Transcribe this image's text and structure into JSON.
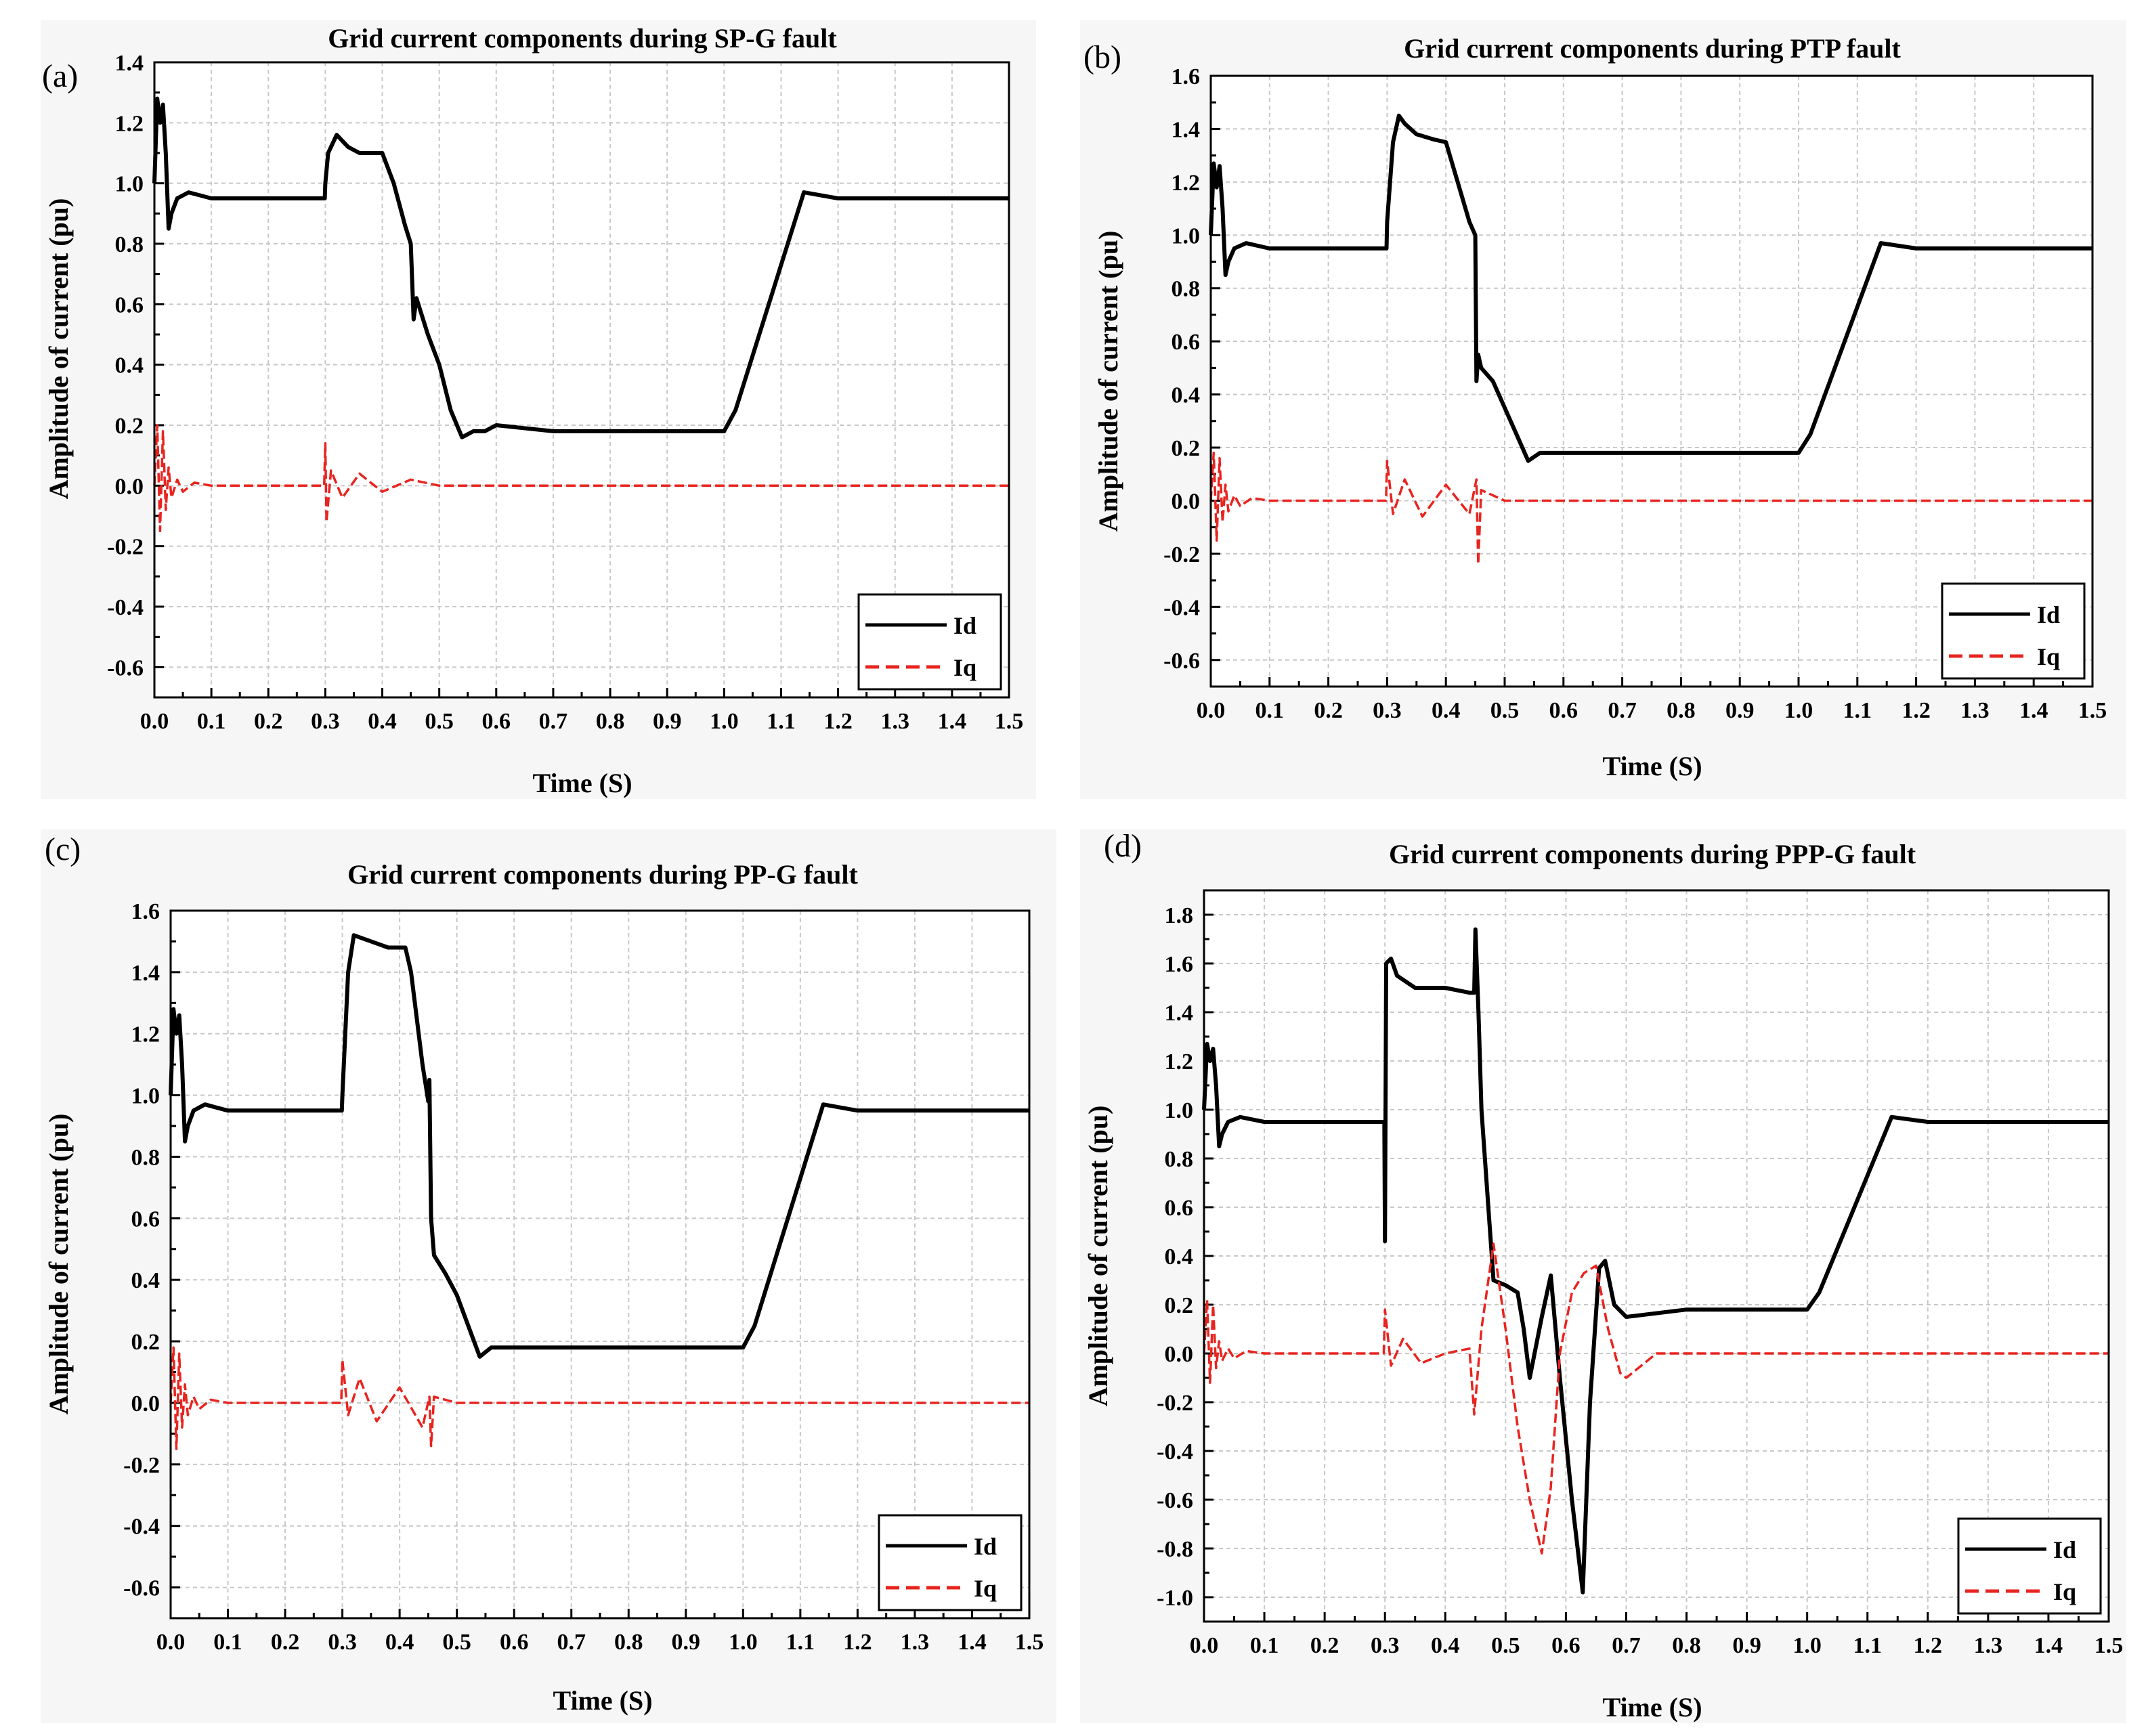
{
  "chart_data": [
    {
      "type": "line",
      "panel_label": "(a)",
      "title": "Grid current components during SP-G fault",
      "xlabel": "Time (S)",
      "ylabel": "Amplitude of current (pu)",
      "xlim": [
        0,
        1.5
      ],
      "ylim": [
        -0.7,
        1.4
      ],
      "x_ticks": [
        "0.0",
        "0.1",
        "0.2",
        "0.3",
        "0.4",
        "0.5",
        "0.6",
        "0.7",
        "0.8",
        "0.9",
        "1.0",
        "1.1",
        "1.2",
        "1.3",
        "1.4",
        "1.5"
      ],
      "y_ticks": [
        "-0.6",
        "-0.4",
        "-0.2",
        "0.0",
        "0.2",
        "0.4",
        "0.6",
        "0.8",
        "1.0",
        "1.2",
        "1.4"
      ],
      "legend_position": "bottom-right",
      "series": [
        {
          "name": "Id",
          "color": "#000000",
          "dash": "solid",
          "x": [
            0,
            0.005,
            0.01,
            0.015,
            0.02,
            0.025,
            0.03,
            0.04,
            0.06,
            0.08,
            0.1,
            0.2,
            0.299,
            0.3,
            0.305,
            0.32,
            0.34,
            0.36,
            0.38,
            0.4,
            0.42,
            0.44,
            0.45,
            0.455,
            0.46,
            0.48,
            0.5,
            0.52,
            0.54,
            0.56,
            0.58,
            0.6,
            0.7,
            0.8,
            0.9,
            1.0,
            1.02,
            1.14,
            1.2,
            1.3,
            1.4,
            1.5
          ],
          "y": [
            1.0,
            1.28,
            1.2,
            1.26,
            1.1,
            0.85,
            0.9,
            0.95,
            0.97,
            0.96,
            0.95,
            0.95,
            0.95,
            1.0,
            1.1,
            1.16,
            1.12,
            1.1,
            1.1,
            1.1,
            1.0,
            0.86,
            0.8,
            0.55,
            0.62,
            0.5,
            0.4,
            0.25,
            0.16,
            0.18,
            0.18,
            0.2,
            0.18,
            0.18,
            0.18,
            0.18,
            0.25,
            0.97,
            0.95,
            0.95,
            0.95,
            0.95
          ]
        },
        {
          "name": "Iq",
          "color": "#e8241f",
          "dash": "dashed",
          "x": [
            0,
            0.005,
            0.01,
            0.015,
            0.02,
            0.025,
            0.03,
            0.04,
            0.05,
            0.07,
            0.1,
            0.2,
            0.298,
            0.3,
            0.302,
            0.31,
            0.33,
            0.36,
            0.4,
            0.45,
            0.5,
            0.6,
            0.8,
            1.0,
            1.2,
            1.5
          ],
          "y": [
            0,
            0.2,
            -0.15,
            0.18,
            -0.08,
            0.06,
            -0.04,
            0.02,
            -0.02,
            0.01,
            0.0,
            0.0,
            0.0,
            0.14,
            -0.12,
            0.05,
            -0.04,
            0.04,
            -0.02,
            0.02,
            0.0,
            0.0,
            0.0,
            0.0,
            0.0,
            0.0
          ]
        }
      ]
    },
    {
      "type": "line",
      "panel_label": "(b)",
      "title": "Grid current components during PTP fault",
      "xlabel": "Time (S)",
      "ylabel": "Amplitude of current (pu)",
      "xlim": [
        0,
        1.5
      ],
      "ylim": [
        -0.7,
        1.6
      ],
      "x_ticks": [
        "0.0",
        "0.1",
        "0.2",
        "0.3",
        "0.4",
        "0.5",
        "0.6",
        "0.7",
        "0.8",
        "0.9",
        "1.0",
        "1.1",
        "1.2",
        "1.3",
        "1.4",
        "1.5"
      ],
      "y_ticks": [
        "-0.6",
        "-0.4",
        "-0.2",
        "0.0",
        "0.2",
        "0.4",
        "0.6",
        "0.8",
        "1.0",
        "1.2",
        "1.4",
        "1.6"
      ],
      "legend_position": "bottom-right",
      "series": [
        {
          "name": "Id",
          "color": "#000000",
          "dash": "solid",
          "x": [
            0,
            0.005,
            0.01,
            0.015,
            0.02,
            0.025,
            0.03,
            0.04,
            0.06,
            0.08,
            0.1,
            0.2,
            0.299,
            0.3,
            0.31,
            0.32,
            0.33,
            0.35,
            0.38,
            0.4,
            0.42,
            0.44,
            0.45,
            0.452,
            0.455,
            0.46,
            0.48,
            0.5,
            0.52,
            0.54,
            0.56,
            0.6,
            0.7,
            0.8,
            0.9,
            1.0,
            1.02,
            1.14,
            1.2,
            1.3,
            1.4,
            1.5
          ],
          "y": [
            1.0,
            1.27,
            1.18,
            1.26,
            1.1,
            0.85,
            0.9,
            0.95,
            0.97,
            0.96,
            0.95,
            0.95,
            0.95,
            1.05,
            1.35,
            1.45,
            1.42,
            1.38,
            1.36,
            1.35,
            1.2,
            1.05,
            1.0,
            0.45,
            0.55,
            0.5,
            0.45,
            0.35,
            0.25,
            0.15,
            0.18,
            0.18,
            0.18,
            0.18,
            0.18,
            0.18,
            0.25,
            0.97,
            0.95,
            0.95,
            0.95,
            0.95
          ]
        },
        {
          "name": "Iq",
          "color": "#e8241f",
          "dash": "dashed",
          "x": [
            0,
            0.005,
            0.01,
            0.015,
            0.02,
            0.025,
            0.03,
            0.04,
            0.05,
            0.07,
            0.1,
            0.2,
            0.298,
            0.3,
            0.31,
            0.33,
            0.36,
            0.4,
            0.44,
            0.452,
            0.455,
            0.46,
            0.5,
            0.6,
            0.8,
            1.0,
            1.2,
            1.5
          ],
          "y": [
            0,
            0.18,
            -0.15,
            0.16,
            -0.08,
            0.06,
            -0.04,
            0.02,
            -0.02,
            0.01,
            0.0,
            0.0,
            0.0,
            0.15,
            -0.05,
            0.08,
            -0.06,
            0.06,
            -0.05,
            0.08,
            -0.24,
            0.04,
            0.0,
            0.0,
            0.0,
            0.0,
            0.0,
            0.0
          ]
        }
      ]
    },
    {
      "type": "line",
      "panel_label": "(c)",
      "title": "Grid current components during PP-G fault",
      "xlabel": "Time (S)",
      "ylabel": "Amplitude of current (pu)",
      "xlim": [
        0,
        1.5
      ],
      "ylim": [
        -0.7,
        1.6
      ],
      "x_ticks": [
        "0.0",
        "0.1",
        "0.2",
        "0.3",
        "0.4",
        "0.5",
        "0.6",
        "0.7",
        "0.8",
        "0.9",
        "1.0",
        "1.1",
        "1.2",
        "1.3",
        "1.4",
        "1.5"
      ],
      "y_ticks": [
        "-0.6",
        "-0.4",
        "-0.2",
        "0.0",
        "0.2",
        "0.4",
        "0.6",
        "0.8",
        "1.0",
        "1.2",
        "1.4",
        "1.6"
      ],
      "legend_position": "bottom-right",
      "series": [
        {
          "name": "Id",
          "color": "#000000",
          "dash": "solid",
          "x": [
            0,
            0.005,
            0.01,
            0.015,
            0.02,
            0.025,
            0.03,
            0.04,
            0.06,
            0.08,
            0.1,
            0.2,
            0.299,
            0.3,
            0.31,
            0.32,
            0.35,
            0.38,
            0.41,
            0.42,
            0.44,
            0.45,
            0.452,
            0.455,
            0.46,
            0.48,
            0.5,
            0.52,
            0.54,
            0.56,
            0.6,
            0.7,
            0.8,
            0.9,
            1.0,
            1.02,
            1.14,
            1.2,
            1.3,
            1.4,
            1.5
          ],
          "y": [
            1.0,
            1.28,
            1.2,
            1.26,
            1.1,
            0.85,
            0.9,
            0.95,
            0.97,
            0.96,
            0.95,
            0.95,
            0.95,
            1.0,
            1.4,
            1.52,
            1.5,
            1.48,
            1.48,
            1.4,
            1.1,
            0.98,
            1.05,
            0.6,
            0.48,
            0.42,
            0.35,
            0.25,
            0.15,
            0.18,
            0.18,
            0.18,
            0.18,
            0.18,
            0.18,
            0.25,
            0.97,
            0.95,
            0.95,
            0.95,
            0.95
          ]
        },
        {
          "name": "Iq",
          "color": "#e8241f",
          "dash": "dashed",
          "x": [
            0,
            0.005,
            0.01,
            0.015,
            0.02,
            0.025,
            0.03,
            0.04,
            0.05,
            0.07,
            0.1,
            0.2,
            0.298,
            0.3,
            0.31,
            0.33,
            0.36,
            0.4,
            0.44,
            0.452,
            0.455,
            0.46,
            0.5,
            0.6,
            0.8,
            1.0,
            1.2,
            1.5
          ],
          "y": [
            0,
            0.18,
            -0.15,
            0.16,
            -0.08,
            0.06,
            -0.04,
            0.02,
            -0.02,
            0.01,
            0.0,
            0.0,
            0.0,
            0.14,
            -0.04,
            0.08,
            -0.06,
            0.05,
            -0.08,
            0.02,
            -0.14,
            0.02,
            0.0,
            0.0,
            0.0,
            0.0,
            0.0,
            0.0
          ]
        }
      ]
    },
    {
      "type": "line",
      "panel_label": "(d)",
      "title": "Grid current components during PPP-G fault",
      "xlabel": "Time (S)",
      "ylabel": "Amplitude of current (pu)",
      "xlim": [
        0,
        1.5
      ],
      "ylim": [
        -1.1,
        1.9
      ],
      "x_ticks": [
        "0.0",
        "0.1",
        "0.2",
        "0.3",
        "0.4",
        "0.5",
        "0.6",
        "0.7",
        "0.8",
        "0.9",
        "1.0",
        "1.1",
        "1.2",
        "1.3",
        "1.4",
        "1.5"
      ],
      "y_ticks": [
        "-1.0",
        "-0.8",
        "-0.6",
        "-0.4",
        "-0.2",
        "0.0",
        "0.2",
        "0.4",
        "0.6",
        "0.8",
        "1.0",
        "1.2",
        "1.4",
        "1.6",
        "1.8"
      ],
      "legend_position": "bottom-right",
      "series": [
        {
          "name": "Id",
          "color": "#000000",
          "dash": "solid",
          "x": [
            0,
            0.005,
            0.01,
            0.015,
            0.02,
            0.025,
            0.03,
            0.04,
            0.06,
            0.08,
            0.1,
            0.2,
            0.299,
            0.3,
            0.302,
            0.31,
            0.32,
            0.35,
            0.4,
            0.44,
            0.448,
            0.45,
            0.455,
            0.46,
            0.48,
            0.5,
            0.52,
            0.53,
            0.54,
            0.56,
            0.575,
            0.59,
            0.61,
            0.628,
            0.64,
            0.655,
            0.665,
            0.68,
            0.7,
            0.8,
            0.9,
            1.0,
            1.02,
            1.14,
            1.2,
            1.3,
            1.4,
            1.5
          ],
          "y": [
            1.0,
            1.27,
            1.2,
            1.25,
            1.1,
            0.85,
            0.9,
            0.95,
            0.97,
            0.96,
            0.95,
            0.95,
            0.95,
            0.46,
            1.6,
            1.62,
            1.55,
            1.5,
            1.5,
            1.48,
            1.48,
            1.74,
            1.4,
            1.0,
            0.3,
            0.28,
            0.25,
            0.1,
            -0.1,
            0.15,
            0.32,
            -0.1,
            -0.6,
            -0.98,
            -0.2,
            0.35,
            0.38,
            0.2,
            0.15,
            0.18,
            0.18,
            0.18,
            0.25,
            0.97,
            0.95,
            0.95,
            0.95,
            0.95
          ]
        },
        {
          "name": "Iq",
          "color": "#e8241f",
          "dash": "dashed",
          "x": [
            0,
            0.005,
            0.01,
            0.015,
            0.02,
            0.025,
            0.03,
            0.04,
            0.05,
            0.07,
            0.1,
            0.2,
            0.298,
            0.3,
            0.31,
            0.33,
            0.36,
            0.4,
            0.44,
            0.448,
            0.46,
            0.48,
            0.5,
            0.52,
            0.54,
            0.56,
            0.575,
            0.59,
            0.61,
            0.63,
            0.65,
            0.67,
            0.69,
            0.7,
            0.75,
            0.8,
            1.0,
            1.2,
            1.5
          ],
          "y": [
            0,
            0.22,
            -0.12,
            0.2,
            -0.06,
            0.05,
            -0.03,
            0.02,
            -0.02,
            0.01,
            0.0,
            0.0,
            0.0,
            0.18,
            -0.05,
            0.06,
            -0.04,
            0.0,
            0.02,
            -0.25,
            0.1,
            0.45,
            0.1,
            -0.3,
            -0.6,
            -0.82,
            -0.55,
            0.0,
            0.25,
            0.33,
            0.36,
            0.1,
            -0.08,
            -0.1,
            0.0,
            0.0,
            0.0,
            0.0,
            0.0
          ]
        }
      ]
    }
  ]
}
